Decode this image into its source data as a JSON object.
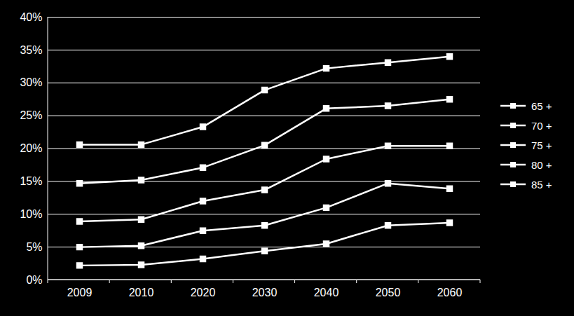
{
  "chart_data": {
    "type": "line",
    "categories": [
      "2009",
      "2010",
      "2020",
      "2030",
      "2040",
      "2050",
      "2060"
    ],
    "series": [
      {
        "name": "65 +",
        "color": "#ffffff",
        "marker": "square",
        "line_style": "solid",
        "values": [
          20.6,
          20.6,
          23.3,
          28.9,
          32.2,
          33.1,
          34.0
        ]
      },
      {
        "name": "70 +",
        "color": "#ffffff",
        "marker": "square",
        "line_style": "solid",
        "values": [
          14.7,
          15.2,
          17.1,
          20.5,
          26.1,
          26.5,
          27.5
        ]
      },
      {
        "name": "75 +",
        "color": "#ffffff",
        "marker": "square",
        "line_style": "solid",
        "values": [
          8.9,
          9.2,
          12.0,
          13.7,
          18.4,
          20.4,
          20.4
        ]
      },
      {
        "name": "80 +",
        "color": "#ffffff",
        "marker": "square",
        "line_style": "solid",
        "values": [
          5.0,
          5.2,
          7.5,
          8.3,
          11.0,
          14.7,
          13.9
        ]
      },
      {
        "name": "85 +",
        "color": "#ffffff",
        "marker": "square",
        "line_style": "solid",
        "values": [
          2.2,
          2.3,
          3.2,
          4.4,
          5.5,
          8.3,
          8.7
        ]
      }
    ],
    "ylim": [
      0,
      40
    ],
    "yticks": [
      {
        "value": 0,
        "label": "0%"
      },
      {
        "value": 5,
        "label": "5%"
      },
      {
        "value": 10,
        "label": "10%"
      },
      {
        "value": 15,
        "label": "15%"
      },
      {
        "value": 20,
        "label": "20%"
      },
      {
        "value": 25,
        "label": "25%"
      },
      {
        "value": 30,
        "label": "30%"
      },
      {
        "value": 35,
        "label": "35%"
      },
      {
        "value": 40,
        "label": "40%"
      }
    ],
    "grid": true,
    "legend": "right"
  }
}
